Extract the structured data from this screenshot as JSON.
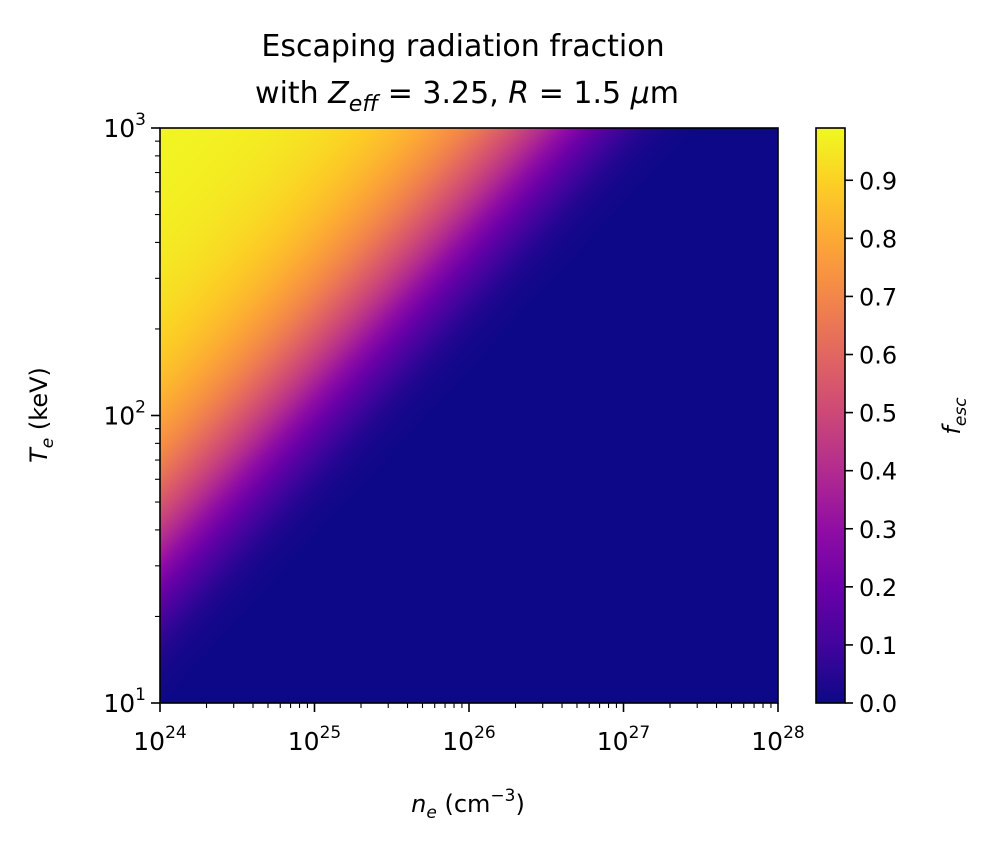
{
  "chart_data": {
    "type": "heatmap",
    "title_line1": "Escaping radiation fraction",
    "title_line2": {
      "prefix": "with ",
      "Z_sym": "Z",
      "Z_sub": "eff",
      "Z_eq": " = 3.25, ",
      "R_sym": "R",
      "R_eq": " = 1.5 ",
      "mu": "μ",
      "unit": "m"
    },
    "xlabel": {
      "sym": "n",
      "sub": "e",
      "text": " (cm",
      "sup": "−3",
      "close": ")"
    },
    "ylabel": {
      "sym": "T",
      "sub": "e",
      "text": " (keV)"
    },
    "colorbar_label": {
      "sym": "f",
      "sub": "esc"
    },
    "x_scale": "log",
    "y_scale": "log",
    "xlim": [
      1e+24,
      1e+28
    ],
    "ylim": [
      10,
      1000
    ],
    "x_ticks": [
      {
        "base": "10",
        "exp": "24"
      },
      {
        "base": "10",
        "exp": "25"
      },
      {
        "base": "10",
        "exp": "26"
      },
      {
        "base": "10",
        "exp": "27"
      },
      {
        "base": "10",
        "exp": "28"
      }
    ],
    "y_ticks": [
      {
        "base": "10",
        "exp": "1"
      },
      {
        "base": "10",
        "exp": "2"
      },
      {
        "base": "10",
        "exp": "3"
      }
    ],
    "colorbar_range": [
      0.0,
      0.99
    ],
    "colorbar_ticks": [
      "0.0",
      "0.1",
      "0.2",
      "0.3",
      "0.4",
      "0.5",
      "0.6",
      "0.7",
      "0.8",
      "0.9"
    ],
    "colormap": "plasma",
    "field_samples": [
      {
        "n_e": 1e+24,
        "T_e": 1000,
        "f_esc": 0.98
      },
      {
        "n_e": 1e+24,
        "T_e": 300,
        "f_esc": 0.85
      },
      {
        "n_e": 1e+24,
        "T_e": 100,
        "f_esc": 0.65
      },
      {
        "n_e": 1e+24,
        "T_e": 50,
        "f_esc": 0.3
      },
      {
        "n_e": 1e+24,
        "T_e": 20,
        "f_esc": 0.03
      },
      {
        "n_e": 1e+25,
        "T_e": 1000,
        "f_esc": 0.9
      },
      {
        "n_e": 1e+25,
        "T_e": 200,
        "f_esc": 0.3
      },
      {
        "n_e": 1e+26,
        "T_e": 1000,
        "f_esc": 0.4
      },
      {
        "n_e": 3e+26,
        "T_e": 1000,
        "f_esc": 0.2
      },
      {
        "n_e": 1e+27,
        "T_e": 1000,
        "f_esc": 0.03
      }
    ],
    "colors": {
      "plasma_stops": [
        "#0d0887",
        "#41049d",
        "#6a00a8",
        "#8f0da4",
        "#b12a90",
        "#cc4778",
        "#e16462",
        "#f2844b",
        "#fca636",
        "#fcce25",
        "#f0f921"
      ]
    }
  }
}
